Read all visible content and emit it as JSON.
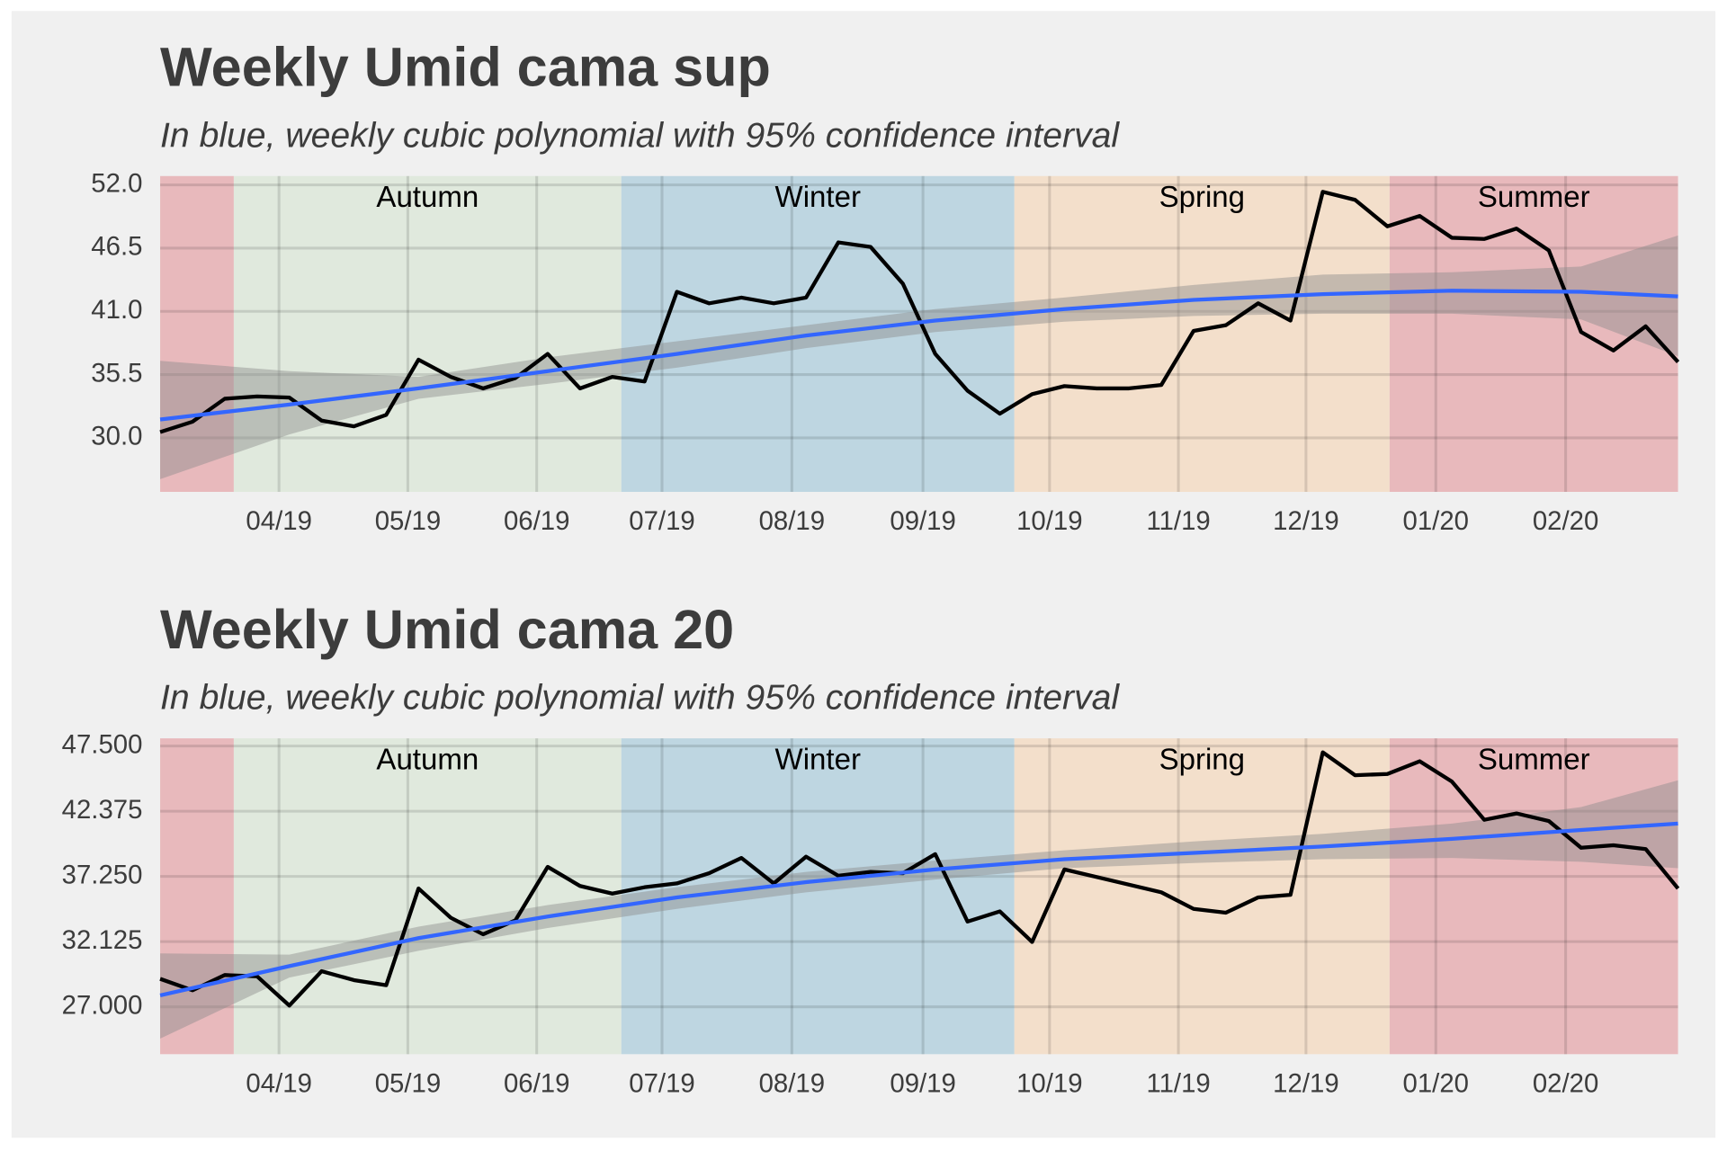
{
  "chart_data": [
    {
      "type": "line",
      "title": "Weekly Umid cama sup",
      "subtitle": "In blue, weekly cubic polynomial with 95% confidence interval",
      "x": [
        0,
        1,
        2,
        3,
        4,
        5,
        6,
        7,
        8,
        9,
        10,
        11,
        12,
        13,
        14,
        15,
        16,
        17,
        18,
        19,
        20,
        21,
        22,
        23,
        24,
        25,
        26,
        27,
        28,
        29,
        30,
        31,
        32,
        33,
        34,
        35,
        36,
        37,
        38,
        39,
        40,
        41,
        42,
        43,
        44,
        45,
        46,
        47
      ],
      "values": [
        30.5,
        31.4,
        33.4,
        33.6,
        33.5,
        31.5,
        31.0,
        32.0,
        36.8,
        35.3,
        34.3,
        35.2,
        37.3,
        34.3,
        35.3,
        34.9,
        42.7,
        41.7,
        42.2,
        41.7,
        42.2,
        47.0,
        46.6,
        43.4,
        37.3,
        34.1,
        32.1,
        33.8,
        34.5,
        34.3,
        34.3,
        34.6,
        39.3,
        39.8,
        41.7,
        40.2,
        51.4,
        50.7,
        48.4,
        49.3,
        47.4,
        47.3,
        48.2,
        46.3,
        39.2,
        37.6,
        39.7,
        36.6
      ],
      "color": "#000000",
      "fit": {
        "x": [
          0,
          4,
          8,
          12,
          16,
          20,
          24,
          28,
          32,
          36,
          40,
          44,
          47
        ],
        "values": [
          31.6,
          32.9,
          34.3,
          35.8,
          37.3,
          38.9,
          40.2,
          41.2,
          42.0,
          42.5,
          42.8,
          42.7,
          42.3
        ],
        "lower": [
          26.4,
          30.3,
          33.4,
          34.7,
          36.1,
          37.8,
          39.2,
          40.1,
          40.6,
          40.8,
          40.8,
          40.3,
          37.1
        ],
        "upper": [
          36.7,
          35.8,
          35.3,
          37.0,
          38.4,
          39.8,
          41.2,
          42.2,
          43.3,
          44.2,
          44.4,
          44.9,
          47.6
        ],
        "color": "#3366ff",
        "band_color": "#8c8c8c"
      },
      "seasons": [
        {
          "label": null,
          "start": 0,
          "end": 2.28,
          "color": "#e8b9bc"
        },
        {
          "label": "Autumn",
          "start": 2.28,
          "end": 14.28,
          "color": "#e0e9dd"
        },
        {
          "label": "Winter",
          "start": 14.28,
          "end": 26.45,
          "color": "#bed6e1"
        },
        {
          "label": "Spring",
          "start": 26.45,
          "end": 38.07,
          "color": "#f3dfcb"
        },
        {
          "label": "Summer",
          "start": 38.07,
          "end": 47,
          "color": "#e8b9bc"
        }
      ],
      "xlim": [
        0,
        47
      ],
      "xticks": [
        {
          "value": 3.68,
          "label": "04/19"
        },
        {
          "value": 7.67,
          "label": "05/19"
        },
        {
          "value": 11.66,
          "label": "06/19"
        },
        {
          "value": 15.54,
          "label": "07/19"
        },
        {
          "value": 19.56,
          "label": "08/19"
        },
        {
          "value": 23.62,
          "label": "09/19"
        },
        {
          "value": 27.54,
          "label": "10/19"
        },
        {
          "value": 31.53,
          "label": "11/19"
        },
        {
          "value": 35.48,
          "label": "12/19"
        },
        {
          "value": 39.5,
          "label": "01/20"
        },
        {
          "value": 43.52,
          "label": "02/20"
        }
      ],
      "ylim": [
        25.3,
        52.77
      ],
      "yticks": [
        {
          "value": 52,
          "label": "52.0"
        },
        46.5,
        {
          "value": 41,
          "label": "41.0"
        },
        35.5,
        {
          "value": 30,
          "label": "30.0"
        }
      ],
      "grid": true
    },
    {
      "type": "line",
      "title": "Weekly Umid cama 20",
      "subtitle": "In blue, weekly cubic polynomial with 95% confidence interval",
      "x": [
        0,
        1,
        2,
        3,
        4,
        5,
        6,
        7,
        8,
        9,
        10,
        11,
        12,
        13,
        14,
        15,
        16,
        17,
        18,
        19,
        20,
        21,
        22,
        23,
        24,
        25,
        26,
        27,
        28,
        29,
        30,
        31,
        32,
        33,
        34,
        35,
        36,
        37,
        38,
        39,
        40,
        41,
        42,
        43,
        44,
        45,
        46,
        47
      ],
      "values": [
        29.2,
        28.3,
        29.5,
        29.4,
        27.1,
        29.8,
        29.1,
        28.7,
        36.3,
        34.0,
        32.7,
        33.8,
        38.0,
        36.5,
        35.9,
        36.4,
        36.7,
        37.5,
        38.7,
        36.7,
        38.8,
        37.3,
        37.6,
        37.5,
        39.0,
        33.7,
        34.5,
        32.1,
        37.8,
        37.2,
        36.6,
        36.0,
        34.7,
        34.4,
        35.6,
        35.8,
        47.0,
        45.2,
        45.3,
        46.3,
        44.7,
        41.7,
        42.2,
        41.6,
        39.5,
        39.7,
        39.4,
        36.3
      ],
      "color": "#000000",
      "fit": {
        "x": [
          0,
          4,
          8,
          12,
          16,
          20,
          24,
          28,
          32,
          36,
          40,
          44,
          47
        ],
        "values": [
          27.9,
          30.2,
          32.4,
          34.1,
          35.6,
          36.8,
          37.8,
          38.6,
          39.1,
          39.6,
          40.2,
          40.9,
          41.4
        ],
        "lower": [
          24.5,
          29.3,
          31.4,
          33.2,
          34.7,
          36.0,
          37.0,
          37.9,
          38.3,
          38.6,
          38.7,
          38.4,
          37.9
        ],
        "upper": [
          31.2,
          31.1,
          33.3,
          35.0,
          36.4,
          37.6,
          38.5,
          39.3,
          40.0,
          40.6,
          41.4,
          42.7,
          44.8
        ],
        "color": "#3366ff",
        "band_color": "#8c8c8c"
      },
      "seasons": [
        {
          "label": null,
          "start": 0,
          "end": 2.28,
          "color": "#e8b9bc"
        },
        {
          "label": "Autumn",
          "start": 2.28,
          "end": 14.28,
          "color": "#e0e9dd"
        },
        {
          "label": "Winter",
          "start": 14.28,
          "end": 26.45,
          "color": "#bed6e1"
        },
        {
          "label": "Spring",
          "start": 26.45,
          "end": 38.07,
          "color": "#f3dfcb"
        },
        {
          "label": "Summer",
          "start": 38.07,
          "end": 47,
          "color": "#e8b9bc"
        }
      ],
      "xlim": [
        0,
        47
      ],
      "xticks": [
        {
          "value": 3.68,
          "label": "04/19"
        },
        {
          "value": 7.67,
          "label": "05/19"
        },
        {
          "value": 11.66,
          "label": "06/19"
        },
        {
          "value": 15.54,
          "label": "07/19"
        },
        {
          "value": 19.56,
          "label": "08/19"
        },
        {
          "value": 23.62,
          "label": "09/19"
        },
        {
          "value": 27.54,
          "label": "10/19"
        },
        {
          "value": 31.53,
          "label": "11/19"
        },
        {
          "value": 35.48,
          "label": "12/19"
        },
        {
          "value": 39.5,
          "label": "01/20"
        },
        {
          "value": 43.52,
          "label": "02/20"
        }
      ],
      "ylim": [
        23.28,
        48.1
      ],
      "yticks": [
        {
          "value": 47.5,
          "label": "47.500"
        },
        {
          "value": 42.375,
          "label": "42.375"
        },
        {
          "value": 37.25,
          "label": "37.250"
        },
        {
          "value": 32.125,
          "label": "32.125"
        },
        {
          "value": 27,
          "label": "27.000"
        }
      ],
      "grid": true
    }
  ]
}
